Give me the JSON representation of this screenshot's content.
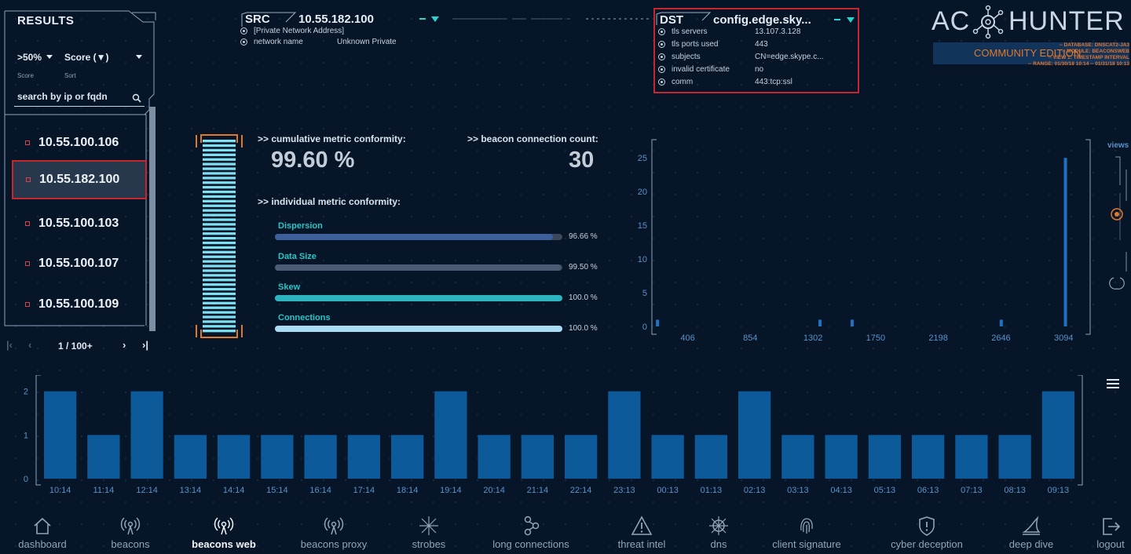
{
  "results": {
    "title": "RESULTS",
    "score_filter": ">50%",
    "score_label": "Score",
    "sort_value": "Score (▼)",
    "sort_label": "Sort",
    "search_placeholder": "search by ip or fqdn",
    "items": [
      "10.55.100.106",
      "10.55.182.100",
      "10.55.100.103",
      "10.55.100.107",
      "10.55.100.109"
    ],
    "selected_index": 1,
    "pagination": "1 / 100+"
  },
  "src": {
    "label": "SRC",
    "ip": "10.55.182.100",
    "address_type": "[Private Network Address]",
    "network_name_label": "network name",
    "network_name_value": "Unknown Private"
  },
  "dst": {
    "label": "DST",
    "host": "config.edge.sky...",
    "rows": [
      {
        "key": "tls servers",
        "value": "13.107.3.128"
      },
      {
        "key": "tls ports used",
        "value": "443"
      },
      {
        "key": "subjects",
        "value": "CN=edge.skype.c..."
      },
      {
        "key": "invalid certificate",
        "value": "no"
      },
      {
        "key": "comm",
        "value": "443:tcp:ssl"
      }
    ]
  },
  "logo": {
    "left": "AC",
    "right": "HUNTER",
    "edition": "COMMUNITY EDITION",
    "meta": [
      "-- DATABASE: DNSCAT2-JA3",
      "-- MODULE: BEACONSWEB",
      "-- VIEW 1: TIMESTAMP INTERVAL",
      "-- RANGE: 01/30/18 10:14 -- 01/31/18 10:13"
    ]
  },
  "metrics": {
    "cumulative_label": ">> cumulative metric conformity:",
    "cumulative_value": "99.60 %",
    "count_label": ">> beacon connection count:",
    "count_value": "30",
    "individual_label": ">> individual metric conformity:",
    "bars": [
      {
        "name": "Dispersion",
        "value": "96.66 %",
        "fraction": 0.9666,
        "color": "#3d5f9a"
      },
      {
        "name": "Data Size",
        "value": "99.50 %",
        "fraction": 0.995,
        "color": "#4c5a76"
      },
      {
        "name": "Skew",
        "value": "100.0 %",
        "fraction": 1.0,
        "color": "#2bb3c0"
      },
      {
        "name": "Connections",
        "value": "100.0 %",
        "fraction": 1.0,
        "color": "#a9dbf5"
      }
    ]
  },
  "chart_data": [
    {
      "type": "bar",
      "x_ticks": [
        "406",
        "854",
        "1302",
        "1750",
        "2198",
        "2646",
        "3094"
      ],
      "y_ticks": [
        "0",
        "5",
        "10",
        "15",
        "20",
        "25"
      ],
      "ylim": [
        0,
        27
      ],
      "points": [
        {
          "x": 190,
          "y": 1
        },
        {
          "x": 1352,
          "y": 1
        },
        {
          "x": 1582,
          "y": 1
        },
        {
          "x": 2648,
          "y": 1
        },
        {
          "x": 3107,
          "y": 25
        }
      ],
      "xlim": [
        150,
        3250
      ],
      "side_label": "views",
      "color": "#1f72c2"
    },
    {
      "type": "bar",
      "categories": [
        "10:14",
        "11:14",
        "12:14",
        "13:14",
        "14:14",
        "15:14",
        "16:14",
        "17:14",
        "18:14",
        "19:14",
        "20:14",
        "21:14",
        "22:14",
        "23:13",
        "00:13",
        "01:13",
        "02:13",
        "03:13",
        "04:13",
        "05:13",
        "06:13",
        "07:13",
        "08:13",
        "09:13"
      ],
      "values": [
        2,
        1,
        2,
        1,
        1,
        1,
        1,
        1,
        1,
        2,
        1,
        1,
        1,
        2,
        1,
        1,
        2,
        1,
        1,
        1,
        1,
        1,
        1,
        2
      ],
      "y_ticks": [
        "0",
        "1",
        "2"
      ],
      "ylim": [
        0,
        2.3
      ],
      "color": "#0d5a9a"
    }
  ],
  "nav": [
    {
      "label": "dashboard",
      "icon": "home-icon",
      "active": false
    },
    {
      "label": "beacons",
      "icon": "beacon-icon",
      "active": false
    },
    {
      "label": "beacons web",
      "icon": "beacon-icon",
      "active": true
    },
    {
      "label": "beacons proxy",
      "icon": "beacon-icon",
      "active": false
    },
    {
      "label": "strobes",
      "icon": "burst-icon",
      "active": false
    },
    {
      "label": "long connections",
      "icon": "nodes-icon",
      "active": false
    },
    {
      "label": "threat intel",
      "icon": "warning-icon",
      "active": false
    },
    {
      "label": "dns",
      "icon": "ship-wheel-icon",
      "active": false
    },
    {
      "label": "client signature",
      "icon": "fingerprint-icon",
      "active": false
    },
    {
      "label": "cyber deception",
      "icon": "shield-icon",
      "active": false
    },
    {
      "label": "deep dive",
      "icon": "shark-fin-icon",
      "active": false
    },
    {
      "label": "logout",
      "icon": "logout-icon",
      "active": false
    }
  ]
}
